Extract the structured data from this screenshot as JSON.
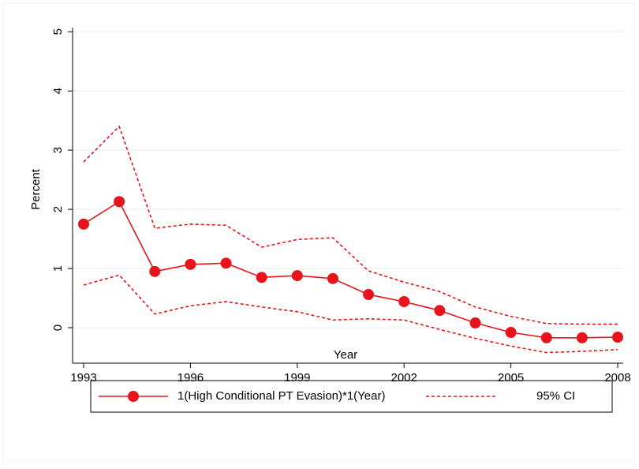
{
  "chart_data": {
    "type": "line",
    "x": [
      1993,
      1994,
      1995,
      1996,
      1997,
      1998,
      1999,
      2000,
      2001,
      2002,
      2003,
      2004,
      2005,
      2006,
      2007,
      2008
    ],
    "series": [
      {
        "name": "1(High Conditional PT Evasion)*1(Year)",
        "color": "#e8141b",
        "values": [
          1.75,
          2.13,
          0.95,
          1.07,
          1.09,
          0.85,
          0.88,
          0.83,
          0.56,
          0.44,
          0.29,
          0.08,
          -0.08,
          -0.17,
          -0.17,
          -0.16
        ]
      },
      {
        "name": "95% CI",
        "color": "#e8141b",
        "upper": [
          2.8,
          3.4,
          1.68,
          1.75,
          1.73,
          1.36,
          1.49,
          1.52,
          0.96,
          0.77,
          0.61,
          0.35,
          0.19,
          0.07,
          0.06,
          0.06
        ],
        "lower": [
          0.72,
          0.89,
          0.23,
          0.37,
          0.44,
          0.35,
          0.27,
          0.13,
          0.15,
          0.13,
          -0.03,
          -0.18,
          -0.31,
          -0.42,
          -0.4,
          -0.37
        ]
      }
    ],
    "x_label": "Year",
    "y_label": "Percent",
    "xlim": [
      1993,
      2008
    ],
    "xticks": [
      1993,
      1996,
      1999,
      2002,
      2005,
      2008
    ],
    "ylim": [
      -0.6,
      5.07
    ],
    "yticks": [
      0,
      1,
      2,
      3,
      4,
      5
    ],
    "grid": true
  }
}
